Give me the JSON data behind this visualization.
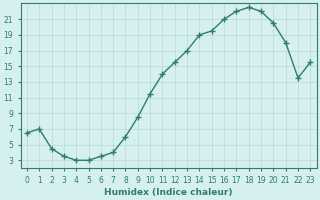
{
  "x": [
    0,
    1,
    2,
    3,
    4,
    5,
    6,
    7,
    8,
    9,
    10,
    11,
    12,
    13,
    14,
    15,
    16,
    17,
    18,
    19,
    20,
    21,
    22,
    23
  ],
  "y": [
    6.5,
    7.0,
    4.5,
    3.5,
    3.0,
    3.0,
    3.5,
    4.0,
    6.0,
    8.5,
    11.5,
    14.0,
    15.5,
    17.0,
    19.0,
    19.5,
    21.0,
    22.0,
    22.5,
    22.0,
    20.5,
    18.0,
    13.5,
    15.5
  ],
  "line_color": "#2e7d6e",
  "marker": "+",
  "markersize": 4,
  "linewidth": 1.0,
  "bg_color": "#d6f0f0",
  "grid_color": "#b8d8d8",
  "xlabel": "Humidex (Indice chaleur)",
  "ylabel_ticks": [
    3,
    5,
    7,
    9,
    11,
    13,
    15,
    17,
    19,
    21
  ],
  "xlim": [
    -0.5,
    23.5
  ],
  "ylim": [
    2.0,
    23.0
  ],
  "tick_fontsize": 5.5,
  "xlabel_fontsize": 6.5
}
